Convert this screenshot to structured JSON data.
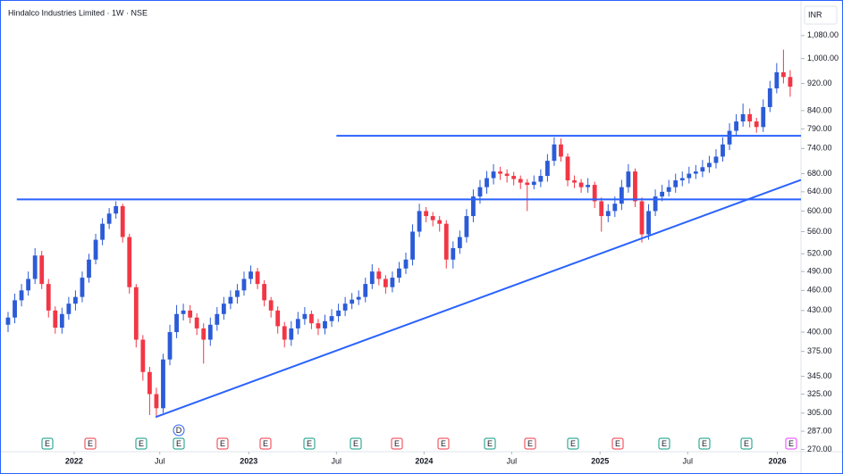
{
  "chart_data": {
    "type": "candlestick",
    "title": "Hindalco Industries Limited · 1W · NSE",
    "currency": "INR",
    "log_scale": true,
    "up_color": "#2b5bd7",
    "down_color": "#f23645",
    "line_color": "#2962ff",
    "ylim": [
      268,
      1195
    ],
    "yticks": [
      {
        "value": 1080,
        "label": "1,080.00"
      },
      {
        "value": 1000,
        "label": "1,000.00"
      },
      {
        "value": 920,
        "label": "920.00"
      },
      {
        "value": 840,
        "label": "840.00"
      },
      {
        "value": 790,
        "label": "790.00"
      },
      {
        "value": 740,
        "label": "740.00"
      },
      {
        "value": 680,
        "label": "680.00"
      },
      {
        "value": 640,
        "label": "640.00"
      },
      {
        "value": 600,
        "label": "600.00"
      },
      {
        "value": 560,
        "label": "560.00"
      },
      {
        "value": 520,
        "label": "520.00"
      },
      {
        "value": 490,
        "label": "490.00"
      },
      {
        "value": 460,
        "label": "460.00"
      },
      {
        "value": 430,
        "label": "430.00"
      },
      {
        "value": 400,
        "label": "400.00"
      },
      {
        "value": 375,
        "label": "375.00"
      },
      {
        "value": 345,
        "label": "345.00"
      },
      {
        "value": 325,
        "label": "325.00"
      },
      {
        "value": 305,
        "label": "305.00"
      },
      {
        "value": 287,
        "label": "287.00"
      },
      {
        "value": 270,
        "label": "270.00"
      }
    ],
    "xlim": [
      -1.06,
      117.6
    ],
    "xticks": [
      {
        "value": 9.8,
        "label": "2022"
      },
      {
        "value": 22.5,
        "label": "Jul"
      },
      {
        "value": 35.7,
        "label": "2023"
      },
      {
        "value": 48.7,
        "label": "Jul"
      },
      {
        "value": 61.7,
        "label": "2024"
      },
      {
        "value": 74.7,
        "label": "Jul"
      },
      {
        "value": 87.8,
        "label": "2025"
      },
      {
        "value": 100.8,
        "label": "Jul"
      },
      {
        "value": 114.1,
        "label": "2026"
      }
    ],
    "horizontal_lines": [
      {
        "price": 624,
        "from": 1.3
      },
      {
        "price": 772,
        "from": 48.7
      }
    ],
    "trend_lines": [
      {
        "from": [
          21.9,
          301
        ],
        "to": [
          117.6,
          666
        ]
      }
    ],
    "events": [
      {
        "label": "E",
        "color": "#089981"
      },
      {
        "label": "E",
        "color": "#f23645"
      },
      {
        "label": "E",
        "color": "#089981"
      },
      {
        "label": "E",
        "color": "#089981"
      },
      {
        "label": "E",
        "color": "#f23645"
      },
      {
        "label": "E",
        "color": "#f23645"
      },
      {
        "label": "E",
        "color": "#089981"
      },
      {
        "label": "E",
        "color": "#089981"
      },
      {
        "label": "E",
        "color": "#f23645"
      },
      {
        "label": "E",
        "color": "#f23645"
      },
      {
        "label": "E",
        "color": "#089981"
      },
      {
        "label": "E",
        "color": "#f23645"
      },
      {
        "label": "E",
        "color": "#089981"
      },
      {
        "label": "E",
        "color": "#f23645"
      },
      {
        "label": "E",
        "color": "#089981"
      },
      {
        "label": "E",
        "color": "#089981"
      },
      {
        "label": "E",
        "color": "#089981"
      },
      {
        "label": "E",
        "color": "#e040fb"
      }
    ],
    "dividend": {
      "label": "D",
      "color": "#2962ff"
    },
    "ohlc": [
      [
        410,
        428,
        400,
        420
      ],
      [
        420,
        455,
        412,
        445
      ],
      [
        445,
        470,
        436,
        460
      ],
      [
        460,
        490,
        452,
        478
      ],
      [
        478,
        530,
        470,
        517
      ],
      [
        517,
        525,
        462,
        470
      ],
      [
        470,
        478,
        420,
        430
      ],
      [
        430,
        436,
        398,
        406
      ],
      [
        406,
        434,
        398,
        425
      ],
      [
        425,
        450,
        417,
        440
      ],
      [
        440,
        460,
        430,
        450
      ],
      [
        450,
        490,
        442,
        480
      ],
      [
        480,
        520,
        472,
        510
      ],
      [
        510,
        556,
        502,
        545
      ],
      [
        545,
        586,
        535,
        575
      ],
      [
        575,
        606,
        565,
        595
      ],
      [
        595,
        620,
        585,
        610
      ],
      [
        610,
        615,
        540,
        550
      ],
      [
        550,
        556,
        455,
        465
      ],
      [
        465,
        470,
        380,
        390
      ],
      [
        390,
        396,
        340,
        350
      ],
      [
        350,
        356,
        303,
        325
      ],
      [
        325,
        332,
        300,
        310
      ],
      [
        310,
        372,
        305,
        365
      ],
      [
        365,
        410,
        358,
        400
      ],
      [
        400,
        438,
        392,
        425
      ],
      [
        425,
        440,
        416,
        430
      ],
      [
        430,
        438,
        412,
        420
      ],
      [
        420,
        426,
        396,
        405
      ],
      [
        405,
        412,
        360,
        390
      ],
      [
        390,
        420,
        382,
        410
      ],
      [
        410,
        435,
        402,
        425
      ],
      [
        425,
        450,
        417,
        440
      ],
      [
        440,
        460,
        432,
        450
      ],
      [
        450,
        470,
        440,
        460
      ],
      [
        460,
        490,
        452,
        478
      ],
      [
        478,
        500,
        470,
        490
      ],
      [
        490,
        496,
        462,
        470
      ],
      [
        470,
        476,
        436,
        445
      ],
      [
        445,
        450,
        420,
        430
      ],
      [
        430,
        436,
        398,
        408
      ],
      [
        408,
        414,
        380,
        390
      ],
      [
        390,
        415,
        382,
        405
      ],
      [
        405,
        428,
        397,
        418
      ],
      [
        418,
        435,
        410,
        425
      ],
      [
        425,
        430,
        404,
        412
      ],
      [
        412,
        418,
        396,
        405
      ],
      [
        405,
        424,
        397,
        415
      ],
      [
        415,
        432,
        407,
        422
      ],
      [
        422,
        440,
        414,
        430
      ],
      [
        430,
        450,
        422,
        440
      ],
      [
        440,
        456,
        432,
        446
      ],
      [
        446,
        460,
        438,
        450
      ],
      [
        450,
        480,
        442,
        470
      ],
      [
        470,
        502,
        462,
        490
      ],
      [
        490,
        496,
        468,
        478
      ],
      [
        478,
        484,
        455,
        465
      ],
      [
        465,
        490,
        457,
        480
      ],
      [
        480,
        506,
        472,
        495
      ],
      [
        495,
        522,
        486,
        510
      ],
      [
        510,
        574,
        500,
        560
      ],
      [
        560,
        615,
        550,
        600
      ],
      [
        600,
        608,
        578,
        590
      ],
      [
        590,
        598,
        570,
        582
      ],
      [
        582,
        590,
        560,
        575
      ],
      [
        575,
        582,
        495,
        510
      ],
      [
        510,
        542,
        495,
        530
      ],
      [
        530,
        562,
        520,
        550
      ],
      [
        550,
        604,
        540,
        590
      ],
      [
        590,
        645,
        578,
        630
      ],
      [
        630,
        666,
        615,
        650
      ],
      [
        650,
        686,
        636,
        670
      ],
      [
        670,
        702,
        656,
        685
      ],
      [
        685,
        696,
        666,
        680
      ],
      [
        680,
        690,
        660,
        675
      ],
      [
        675,
        684,
        654,
        668
      ],
      [
        668,
        676,
        646,
        660
      ],
      [
        660,
        668,
        600,
        655
      ],
      [
        655,
        676,
        645,
        662
      ],
      [
        662,
        690,
        650,
        675
      ],
      [
        675,
        726,
        662,
        710
      ],
      [
        710,
        768,
        698,
        750
      ],
      [
        750,
        765,
        708,
        720
      ],
      [
        720,
        728,
        652,
        665
      ],
      [
        665,
        676,
        648,
        660
      ],
      [
        660,
        668,
        638,
        650
      ],
      [
        650,
        670,
        638,
        655
      ],
      [
        655,
        662,
        606,
        620
      ],
      [
        620,
        628,
        560,
        590
      ],
      [
        590,
        614,
        578,
        600
      ],
      [
        600,
        630,
        588,
        615
      ],
      [
        615,
        666,
        602,
        650
      ],
      [
        650,
        702,
        638,
        685
      ],
      [
        685,
        692,
        608,
        620
      ],
      [
        620,
        628,
        540,
        555
      ],
      [
        555,
        614,
        545,
        600
      ],
      [
        600,
        645,
        590,
        630
      ],
      [
        630,
        655,
        620,
        640
      ],
      [
        640,
        666,
        630,
        650
      ],
      [
        650,
        680,
        638,
        665
      ],
      [
        665,
        685,
        652,
        670
      ],
      [
        670,
        696,
        658,
        680
      ],
      [
        680,
        700,
        668,
        685
      ],
      [
        685,
        712,
        672,
        695
      ],
      [
        695,
        722,
        682,
        705
      ],
      [
        705,
        738,
        692,
        720
      ],
      [
        720,
        768,
        708,
        750
      ],
      [
        750,
        805,
        736,
        785
      ],
      [
        785,
        830,
        770,
        810
      ],
      [
        810,
        860,
        796,
        830
      ],
      [
        830,
        846,
        794,
        810
      ],
      [
        810,
        820,
        780,
        795
      ],
      [
        795,
        872,
        782,
        850
      ],
      [
        850,
        928,
        836,
        905
      ],
      [
        905,
        985,
        890,
        955
      ],
      [
        955,
        1030,
        920,
        940
      ],
      [
        940,
        962,
        880,
        910
      ]
    ]
  }
}
